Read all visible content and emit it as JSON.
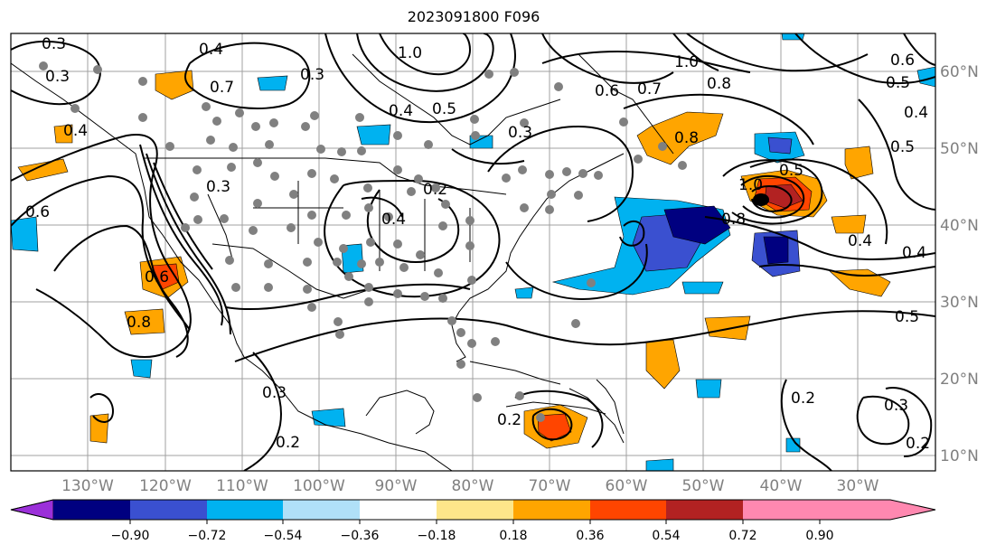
{
  "title": "2023091800 F096",
  "longitude_labels": [
    "130°W",
    "120°W",
    "110°W",
    "100°W",
    "90°W",
    "80°W",
    "70°W",
    "60°W",
    "50°W",
    "40°W",
    "30°W"
  ],
  "latitude_labels": [
    "60°N",
    "50°N",
    "40°N",
    "30°N",
    "20°N",
    "10°N"
  ],
  "colorbar": {
    "tick_labels": [
      "−0.90",
      "−0.72",
      "−0.54",
      "−0.36",
      "−0.18",
      "0.18",
      "0.36",
      "0.54",
      "0.72",
      "0.90"
    ],
    "colors": [
      "#9b30d9",
      "#000080",
      "#3a50d0",
      "#00b2f0",
      "#b0e0f8",
      "#ffffff",
      "#fde68a",
      "#ffa500",
      "#ff4500",
      "#b22222",
      "#ff88b0"
    ]
  },
  "contour_labels": [
    "0.3",
    "0.4",
    "0.7",
    "0.3",
    "0.4",
    "1.0",
    "0.5",
    "0.6",
    "0.7",
    "1.0",
    "0.8",
    "0.6",
    "0.5",
    "0.4",
    "0.5",
    "0.6",
    "0.8",
    "0.5",
    "1.0",
    "0.8",
    "0.4",
    "0.3",
    "0.4",
    "0.2",
    "0.2",
    "0.3",
    "0.5",
    "0.4",
    "0.2",
    "0.3",
    "0.2",
    "0.8",
    "0.4",
    "0.3",
    "0.6",
    "0.2",
    "0.3"
  ]
}
